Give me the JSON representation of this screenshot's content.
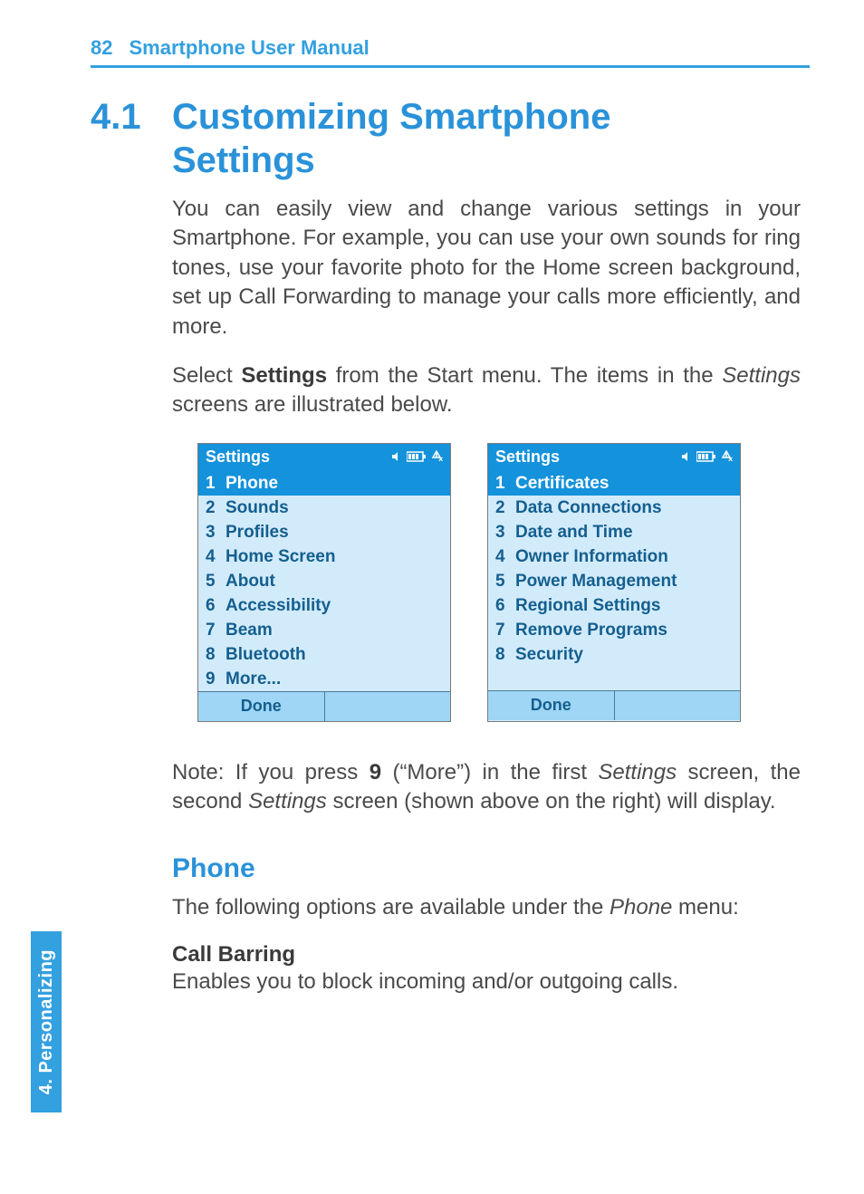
{
  "header": {
    "page_number": "82",
    "title": "Smartphone User Manual"
  },
  "section": {
    "number": "4.1",
    "title": "Customizing Smartphone Settings"
  },
  "paragraphs": {
    "intro": "You can easily view and change various settings in your Smartphone.  For example, you can use your own sounds for ring tones, use your favorite photo for the Home screen background, set up Call Forwarding to manage your calls more efficiently, and more.",
    "select_pre": "Select ",
    "select_bold": "Settings",
    "select_mid": " from the Start menu.  The items in the ",
    "select_ital": "Set­tings",
    "select_post": " screens are illustrated below.",
    "note_pre": "Note:    If you press ",
    "note_bold": "9",
    "note_mid1": " (“More”) in the first ",
    "note_ital1": "Settings",
    "note_mid2": " screen, the second ",
    "note_ital2": "Settings",
    "note_post": " screen (shown above on the right) will display."
  },
  "phone_section": {
    "heading": "Phone",
    "intro_pre": "The following options are available under the ",
    "intro_ital": "Phone",
    "intro_post": " menu:",
    "sub_heading": "Call Barring",
    "sub_body": "Enables you to block incoming and/or outgoing calls."
  },
  "screens": {
    "titlebar": "Settings",
    "done": "Done",
    "left": [
      {
        "n": "1",
        "label": "Phone",
        "selected": true
      },
      {
        "n": "2",
        "label": "Sounds"
      },
      {
        "n": "3",
        "label": "Profiles"
      },
      {
        "n": "4",
        "label": "Home Screen"
      },
      {
        "n": "5",
        "label": "About"
      },
      {
        "n": "6",
        "label": "Accessibility"
      },
      {
        "n": "7",
        "label": "Beam"
      },
      {
        "n": "8",
        "label": "Bluetooth"
      },
      {
        "n": "9",
        "label": "More..."
      }
    ],
    "right": [
      {
        "n": "1",
        "label": "Certificates",
        "selected": true
      },
      {
        "n": "2",
        "label": "Data Connections"
      },
      {
        "n": "3",
        "label": "Date and Time"
      },
      {
        "n": "4",
        "label": "Owner Information"
      },
      {
        "n": "5",
        "label": "Power Management"
      },
      {
        "n": "6",
        "label": "Regional Settings"
      },
      {
        "n": "7",
        "label": "Remove Programs"
      },
      {
        "n": "8",
        "label": "Security"
      }
    ]
  },
  "side_tab": "4. Personalizing",
  "colors": {
    "accent": "#33a0e0",
    "heading": "#2a92d9",
    "screen_bg": "#d2ebfb",
    "screen_titlebar": "#1492db",
    "screen_text": "#145f8f",
    "softkey_bg": "#9fd5f5",
    "body_text": "#4a4a4a"
  }
}
